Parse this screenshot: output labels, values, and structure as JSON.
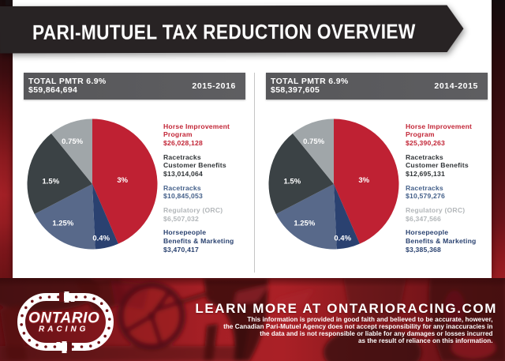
{
  "banner": {
    "title": "PARI-MUTUEL TAX REDUCTION OVERVIEW"
  },
  "panels": [
    {
      "period": "2015-2016",
      "total_label": "TOTAL PMTR 6.9%",
      "total_value": "$59,864,694",
      "legend": [
        {
          "lines": [
            "Horse Improvement",
            "Program"
          ],
          "value": "$26,028,128",
          "color": "#c22536"
        },
        {
          "lines": [
            "Racetracks",
            "Customer Benefits"
          ],
          "value": "$13,014,064",
          "color": "#303437"
        },
        {
          "lines": [
            "Racetracks"
          ],
          "value": "$10,845,053",
          "color": "#44608a"
        },
        {
          "lines": [
            "Regulatory (ORC)"
          ],
          "value": "$6,507,032",
          "color": "#b2b6b9"
        },
        {
          "lines": [
            "Horsepeople",
            "Benefits & Marketing"
          ],
          "value": "$3,470,417",
          "color": "#2a4270"
        }
      ]
    },
    {
      "period": "2014-2015",
      "total_label": "TOTAL PMTR 6.9%",
      "total_value": "$58,397,605",
      "legend": [
        {
          "lines": [
            "Horse Improvement",
            "Program"
          ],
          "value": "$25,390,263",
          "color": "#c22536"
        },
        {
          "lines": [
            "Racetracks",
            "Customer Benefits"
          ],
          "value": "$12,695,131",
          "color": "#303437"
        },
        {
          "lines": [
            "Racetracks"
          ],
          "value": "$10,579,276",
          "color": "#44608a"
        },
        {
          "lines": [
            "Regulatory (ORC)"
          ],
          "value": "$6,347,566",
          "color": "#b2b6b9"
        },
        {
          "lines": [
            "Horsepeople",
            "Benefits & Marketing"
          ],
          "value": "$3,385,368",
          "color": "#2a4270"
        }
      ]
    }
  ],
  "chart_data": [
    {
      "type": "pie",
      "title": "2015-2016",
      "total_label": "TOTAL PMTR 6.9%",
      "total_value_dollars": 59864694,
      "slices": [
        {
          "label": "Horse Improvement Program",
          "pct": 3.0,
          "pct_label": "3%",
          "value_dollars": 26028128,
          "value": "$26,028,128",
          "color": "#bf2133"
        },
        {
          "label": "Horsepeople Benefits & Marketing",
          "pct": 0.4,
          "pct_label": "0.4%",
          "value_dollars": 3470417,
          "value": "$3,470,417",
          "color": "#2a4170"
        },
        {
          "label": "Racetracks",
          "pct": 1.25,
          "pct_label": "1.25%",
          "value_dollars": 10845053,
          "value": "$10,845,053",
          "color": "#58698a"
        },
        {
          "label": "Racetracks Customer Benefits",
          "pct": 1.5,
          "pct_label": "1.5%",
          "value_dollars": 13014064,
          "value": "$13,014,064",
          "color": "#3b4245"
        },
        {
          "label": "Regulatory (ORC)",
          "pct": 0.75,
          "pct_label": "0.75%",
          "value_dollars": 6507032,
          "value": "$6,507,032",
          "color": "#a0a6a9"
        }
      ]
    },
    {
      "type": "pie",
      "title": "2014-2015",
      "total_label": "TOTAL PMTR 6.9%",
      "total_value_dollars": 58397605,
      "slices": [
        {
          "label": "Horse Improvement Program",
          "pct": 3.0,
          "pct_label": "3%",
          "value_dollars": 25390263,
          "value": "$25,390,263",
          "color": "#bf2133"
        },
        {
          "label": "Horsepeople Benefits & Marketing",
          "pct": 0.4,
          "pct_label": "0.4%",
          "value_dollars": 3385368,
          "value": "$3,385,368",
          "color": "#2a4170"
        },
        {
          "label": "Racetracks",
          "pct": 1.25,
          "pct_label": "1.25%",
          "value_dollars": 10579276,
          "value": "$10,579,276",
          "color": "#58698a"
        },
        {
          "label": "Racetracks Customer Benefits",
          "pct": 1.5,
          "pct_label": "1.5%",
          "value_dollars": 12695131,
          "value": "$12,695,131",
          "color": "#3b4245"
        },
        {
          "label": "Regulatory (ORC)",
          "pct": 0.75,
          "pct_label": "0.75%",
          "value_dollars": 6347566,
          "value": "$6,347,566",
          "color": "#a0a6a9"
        }
      ]
    }
  ],
  "pie_layout": {
    "total_pct": 6.9,
    "radius": 82.5,
    "start_angle_deg": 0,
    "clockwise": true,
    "label_color": "#ffffff",
    "label_font_size": 9.5,
    "label_offsets": [
      [
        38.2,
        -4.3
      ],
      [
        11.2,
        69.2
      ],
      [
        -37.2,
        49.9
      ],
      [
        -52.7,
        -2.9
      ],
      [
        -25.4,
        -53.3
      ]
    ]
  },
  "footer": {
    "headline": "LEARN MORE AT ONTARIORACING.COM",
    "disclaimer": "This information is provided in good faith and believed to be accurate, however,\nthe Canadian Pari-Mutuel Agency does not accept responsibility for any inaccuracies in\nthe data and is not responsible or liable for any damages or losses incurred\nas the result of reliance on this information.",
    "logo": {
      "line1": "ONTARIO",
      "line2": "RACING"
    }
  }
}
